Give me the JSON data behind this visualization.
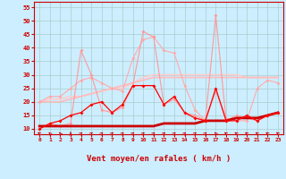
{
  "xlabel": "Vent moyen/en rafales ( km/h )",
  "background_color": "#cceeff",
  "grid_color": "#aacccc",
  "x": [
    0,
    1,
    2,
    3,
    4,
    5,
    6,
    7,
    8,
    9,
    10,
    11,
    12,
    13,
    14,
    15,
    16,
    17,
    18,
    19,
    20,
    21,
    22,
    23
  ],
  "ylim": [
    8,
    57
  ],
  "yticks": [
    10,
    15,
    20,
    25,
    30,
    35,
    40,
    45,
    50,
    55
  ],
  "line1_y": [
    10,
    12,
    11,
    12,
    39,
    30,
    17,
    16,
    18,
    26,
    46,
    44,
    19,
    21,
    16,
    15,
    13,
    52,
    13,
    15,
    14,
    13,
    15,
    16
  ],
  "line1_color": "#ff9999",
  "line2_y": [
    20,
    22,
    22,
    25,
    28,
    29,
    27,
    25,
    24,
    36,
    43,
    44,
    39,
    38,
    26,
    17,
    13,
    24,
    14,
    13,
    13,
    25,
    28,
    27
  ],
  "line2_color": "#ffaaaa",
  "line3_y": [
    20,
    20,
    20,
    21,
    22,
    23,
    24,
    25,
    26,
    27,
    28,
    29,
    29,
    29,
    29,
    29,
    29,
    29,
    29,
    29,
    29,
    29,
    29,
    29
  ],
  "line3_color": "#ffbbbb",
  "line4_y": [
    20,
    21,
    21,
    22,
    22,
    23,
    24,
    25,
    25,
    27,
    29,
    30,
    30,
    30,
    30,
    30,
    30,
    30,
    30,
    30,
    29,
    29,
    29,
    29
  ],
  "line4_color": "#ffcccc",
  "line5_y": [
    11,
    11,
    11,
    11,
    11,
    11,
    11,
    11,
    11,
    11,
    11,
    11,
    12,
    12,
    12,
    12,
    13,
    13,
    13,
    14,
    14,
    14,
    15,
    16
  ],
  "line5_color": "#cc0000",
  "line6_y": [
    10,
    12,
    13,
    15,
    16,
    19,
    20,
    16,
    19,
    26,
    26,
    26,
    19,
    22,
    16,
    14,
    13,
    25,
    13,
    13,
    15,
    13,
    15,
    16
  ],
  "line6_color": "#ff0000",
  "arrow_angles": [
    215,
    200,
    195,
    180,
    155,
    155,
    155,
    155,
    155,
    155,
    155,
    155,
    155,
    155,
    155,
    155,
    155,
    200,
    215,
    215,
    215,
    215,
    215,
    215
  ]
}
